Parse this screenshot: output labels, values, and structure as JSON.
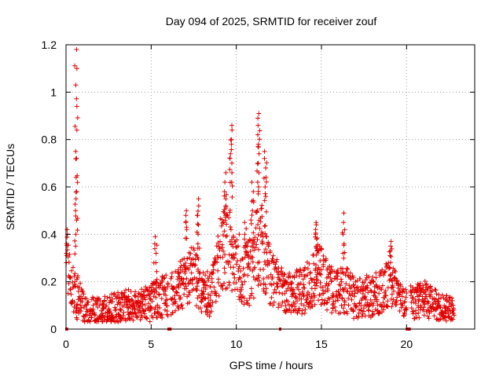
{
  "chart_data": {
    "type": "scatter",
    "title": "Day 094 of 2025, SRMTID for receiver zouf",
    "xlabel": "GPS time / hours",
    "ylabel": "SRMTID / TECUs",
    "xlim": [
      0,
      24
    ],
    "ylim": [
      0,
      1.2
    ],
    "xticks": [
      0,
      5,
      10,
      15,
      20
    ],
    "yticks": [
      0,
      0.2,
      0.4,
      0.6,
      0.8,
      1,
      1.2
    ],
    "ytick_labels": [
      "0",
      "0.2",
      "0.4",
      "0.6",
      "0.8",
      "1",
      "1.2"
    ],
    "grid": true,
    "marker": "plus",
    "color": "#e00000",
    "series": [
      {
        "name": "SRMTID",
        "envelope": [
          {
            "x": 0.0,
            "base": 0.3,
            "amp": 0.12
          },
          {
            "x": 0.3,
            "base": 0.18,
            "amp": 0.1
          },
          {
            "x": 0.6,
            "base": 0.14,
            "amp": 0.1
          },
          {
            "x": 0.9,
            "base": 0.12,
            "amp": 0.08
          },
          {
            "x": 1.2,
            "base": 0.08,
            "amp": 0.06
          },
          {
            "x": 2.0,
            "base": 0.07,
            "amp": 0.06
          },
          {
            "x": 3.0,
            "base": 0.09,
            "amp": 0.07
          },
          {
            "x": 4.0,
            "base": 0.1,
            "amp": 0.07
          },
          {
            "x": 5.0,
            "base": 0.11,
            "amp": 0.08
          },
          {
            "x": 5.5,
            "base": 0.13,
            "amp": 0.09
          },
          {
            "x": 6.5,
            "base": 0.17,
            "amp": 0.1
          },
          {
            "x": 7.0,
            "base": 0.2,
            "amp": 0.11
          },
          {
            "x": 7.5,
            "base": 0.24,
            "amp": 0.12
          },
          {
            "x": 8.0,
            "base": 0.14,
            "amp": 0.1
          },
          {
            "x": 8.5,
            "base": 0.15,
            "amp": 0.1
          },
          {
            "x": 9.0,
            "base": 0.3,
            "amp": 0.16
          },
          {
            "x": 9.5,
            "base": 0.35,
            "amp": 0.18
          },
          {
            "x": 10.0,
            "base": 0.28,
            "amp": 0.16
          },
          {
            "x": 10.5,
            "base": 0.22,
            "amp": 0.14
          },
          {
            "x": 11.0,
            "base": 0.3,
            "amp": 0.18
          },
          {
            "x": 11.5,
            "base": 0.35,
            "amp": 0.18
          },
          {
            "x": 12.0,
            "base": 0.22,
            "amp": 0.12
          },
          {
            "x": 12.5,
            "base": 0.18,
            "amp": 0.1
          },
          {
            "x": 13.0,
            "base": 0.15,
            "amp": 0.09
          },
          {
            "x": 14.0,
            "base": 0.16,
            "amp": 0.1
          },
          {
            "x": 14.8,
            "base": 0.24,
            "amp": 0.13
          },
          {
            "x": 15.5,
            "base": 0.17,
            "amp": 0.1
          },
          {
            "x": 16.5,
            "base": 0.16,
            "amp": 0.1
          },
          {
            "x": 17.0,
            "base": 0.13,
            "amp": 0.09
          },
          {
            "x": 18.0,
            "base": 0.14,
            "amp": 0.09
          },
          {
            "x": 18.5,
            "base": 0.16,
            "amp": 0.1
          },
          {
            "x": 19.0,
            "base": 0.2,
            "amp": 0.1
          },
          {
            "x": 19.5,
            "base": 0.14,
            "amp": 0.08
          },
          {
            "x": 20.5,
            "base": 0.11,
            "amp": 0.07
          },
          {
            "x": 21.0,
            "base": 0.13,
            "amp": 0.08
          },
          {
            "x": 22.0,
            "base": 0.09,
            "amp": 0.06
          },
          {
            "x": 22.8,
            "base": 0.08,
            "amp": 0.05
          }
        ],
        "gaps": [
          [
            0.0,
            0.08
          ],
          [
            6.0,
            6.15
          ],
          [
            12.55,
            12.6
          ],
          [
            20.0,
            20.2
          ]
        ],
        "spikes": [
          {
            "x": 0.05,
            "values": [
              0.42,
              0.4,
              0.36,
              0.32
            ]
          },
          {
            "x": 0.6,
            "values": [
              1.18,
              1.1,
              1.03,
              0.94,
              0.84,
              0.75,
              0.72,
              0.64,
              0.58,
              0.55,
              0.5,
              0.46,
              0.4,
              0.35
            ]
          },
          {
            "x": 5.25,
            "values": [
              0.39,
              0.36,
              0.32,
              0.28
            ]
          },
          {
            "x": 7.05,
            "values": [
              0.5,
              0.48,
              0.45,
              0.42
            ]
          },
          {
            "x": 7.75,
            "values": [
              0.55,
              0.52,
              0.48,
              0.44,
              0.4,
              0.36
            ]
          },
          {
            "x": 9.35,
            "values": [
              0.66,
              0.62,
              0.58,
              0.55,
              0.52,
              0.48
            ]
          },
          {
            "x": 9.7,
            "values": [
              0.86,
              0.84,
              0.8,
              0.78,
              0.74,
              0.7,
              0.66,
              0.62
            ]
          },
          {
            "x": 10.5,
            "values": [
              0.45,
              0.4,
              0.38
            ]
          },
          {
            "x": 10.95,
            "values": [
              0.62,
              0.58,
              0.54,
              0.5
            ]
          },
          {
            "x": 11.3,
            "values": [
              0.91,
              0.89,
              0.86,
              0.82,
              0.78,
              0.74,
              0.7,
              0.66,
              0.62
            ]
          },
          {
            "x": 11.7,
            "values": [
              0.75,
              0.72,
              0.68,
              0.64,
              0.6,
              0.56
            ]
          },
          {
            "x": 14.7,
            "values": [
              0.45,
              0.44,
              0.42,
              0.4,
              0.38,
              0.35
            ]
          },
          {
            "x": 16.3,
            "values": [
              0.49,
              0.45,
              0.4,
              0.36,
              0.32
            ]
          },
          {
            "x": 19.05,
            "values": [
              0.37,
              0.35,
              0.33,
              0.31
            ]
          }
        ],
        "floor": 0.03
      }
    ]
  }
}
